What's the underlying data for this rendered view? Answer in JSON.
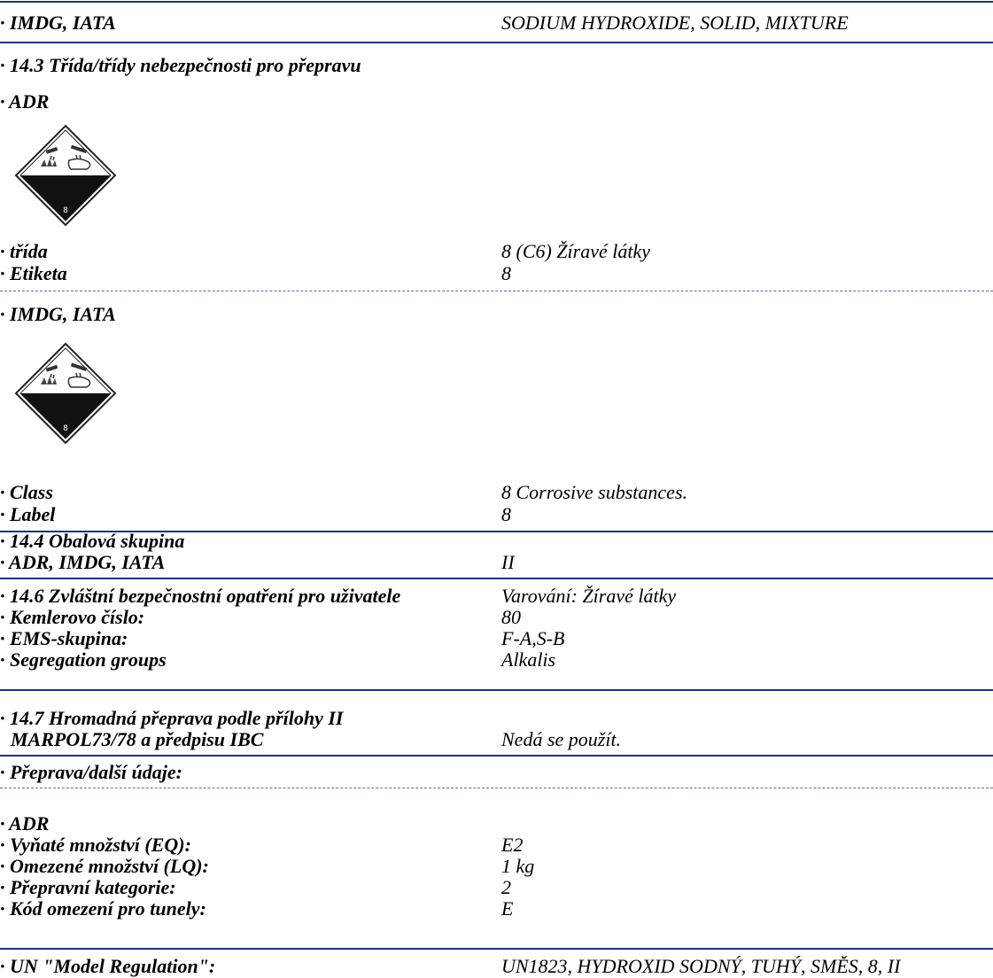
{
  "rows": {
    "r1": {
      "label": "· IMDG, IATA",
      "value": "SODIUM HYDROXIDE, SOLID, MIXTURE"
    },
    "r2": {
      "label": "· 14.3 Třída/třídy nebezpečnosti pro přepravu"
    },
    "r3": {
      "label": "· ADR"
    },
    "r4": {
      "label": "· třída",
      "value": "8 (C6) Žíravé látky"
    },
    "r5": {
      "label": "· Etiketa",
      "value": "8"
    },
    "r6": {
      "label": "· IMDG, IATA"
    },
    "r7": {
      "label": "· Class",
      "value": "8 Corrosive substances."
    },
    "r8": {
      "label": "· Label",
      "value": "8"
    },
    "r9": {
      "label": "· 14.4 Obalová skupina"
    },
    "r10": {
      "label": "· ADR, IMDG, IATA",
      "value": "II"
    },
    "r11": {
      "label": "· 14.6 Zvláštní bezpečnostní opatření pro uživatele",
      "value": "Varování: Žíravé látky"
    },
    "r12": {
      "label": "· Kemlerovo číslo:",
      "value": "80"
    },
    "r13": {
      "label": "· EMS-skupina:",
      "value": "F-A,S-B"
    },
    "r14": {
      "label": "· Segregation groups",
      "value": "Alkalis"
    },
    "r15": {
      "label": "· 14.7 Hromadná přeprava podle přílohy II"
    },
    "r16": {
      "label": "MARPOL73/78 a předpisu IBC",
      "value": "Nedá se použít."
    },
    "r17": {
      "label": "· Přeprava/další údaje:"
    },
    "r18": {
      "label": "· ADR"
    },
    "r19": {
      "label": "· Vyňaté množství (EQ):",
      "value": "E2"
    },
    "r20": {
      "label": "· Omezené množství (LQ):",
      "value": "1 kg"
    },
    "r21": {
      "label": "· Přepravní kategorie:",
      "value": "2"
    },
    "r22": {
      "label": "· Kód omezení pro tunely:",
      "value": "E"
    },
    "r23": {
      "label": "· UN \"Model Regulation\":",
      "value": "UN1823, HYDROXID SODNÝ, TUHÝ, SMĚS, 8, II"
    }
  },
  "placards": {
    "adr": {
      "icon": "corrosive-placard-icon",
      "class_number": "8"
    },
    "imdg": {
      "icon": "corrosive-placard-icon",
      "class_number": "8"
    }
  }
}
